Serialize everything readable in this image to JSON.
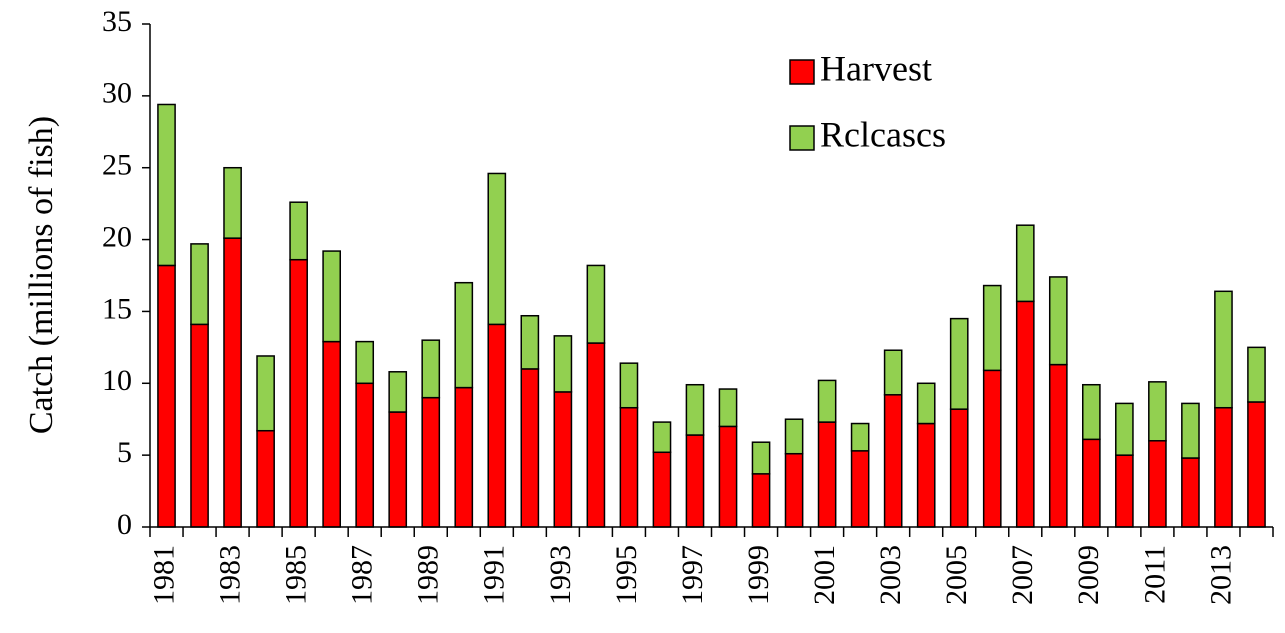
{
  "chart_data": {
    "type": "stacked-bar",
    "y_label": "Catch (millions of fish)",
    "categories": [
      "1981",
      null,
      "1983",
      null,
      "1985",
      null,
      "1987",
      null,
      "1989",
      null,
      "1991",
      null,
      "1993",
      null,
      "1995",
      null,
      "1997",
      null,
      "1999",
      null,
      "2001",
      null,
      "2003",
      null,
      "2005",
      null,
      "2007",
      null,
      "2009",
      null,
      "2011",
      null,
      "2013",
      null
    ],
    "series": [
      {
        "name": "Harvest",
        "color": "#ff0000",
        "values": [
          18.2,
          14.1,
          20.1,
          6.7,
          18.6,
          12.9,
          10.0,
          8.0,
          9.0,
          9.7,
          14.1,
          11.0,
          9.4,
          12.8,
          8.3,
          5.2,
          6.4,
          7.0,
          3.7,
          5.1,
          7.3,
          5.3,
          9.2,
          7.2,
          8.2,
          10.9,
          15.7,
          11.3,
          6.1,
          5.0,
          6.0,
          4.8,
          8.3,
          8.7
        ]
      },
      {
        "name": "Rclcascs",
        "color": "#92d050",
        "values": [
          11.2,
          5.6,
          4.9,
          5.2,
          4.0,
          6.3,
          2.9,
          2.8,
          4.0,
          7.3,
          10.5,
          3.7,
          3.9,
          5.4,
          3.1,
          2.1,
          3.5,
          2.6,
          2.2,
          2.4,
          2.9,
          1.9,
          3.1,
          2.8,
          6.3,
          5.9,
          5.3,
          6.1,
          3.8,
          3.6,
          4.1,
          3.8,
          8.1,
          3.8
        ]
      }
    ],
    "ylim": [
      0,
      35
    ],
    "yticks": [
      0,
      5,
      10,
      15,
      20,
      25,
      30,
      35
    ],
    "legend": "upper-right"
  }
}
